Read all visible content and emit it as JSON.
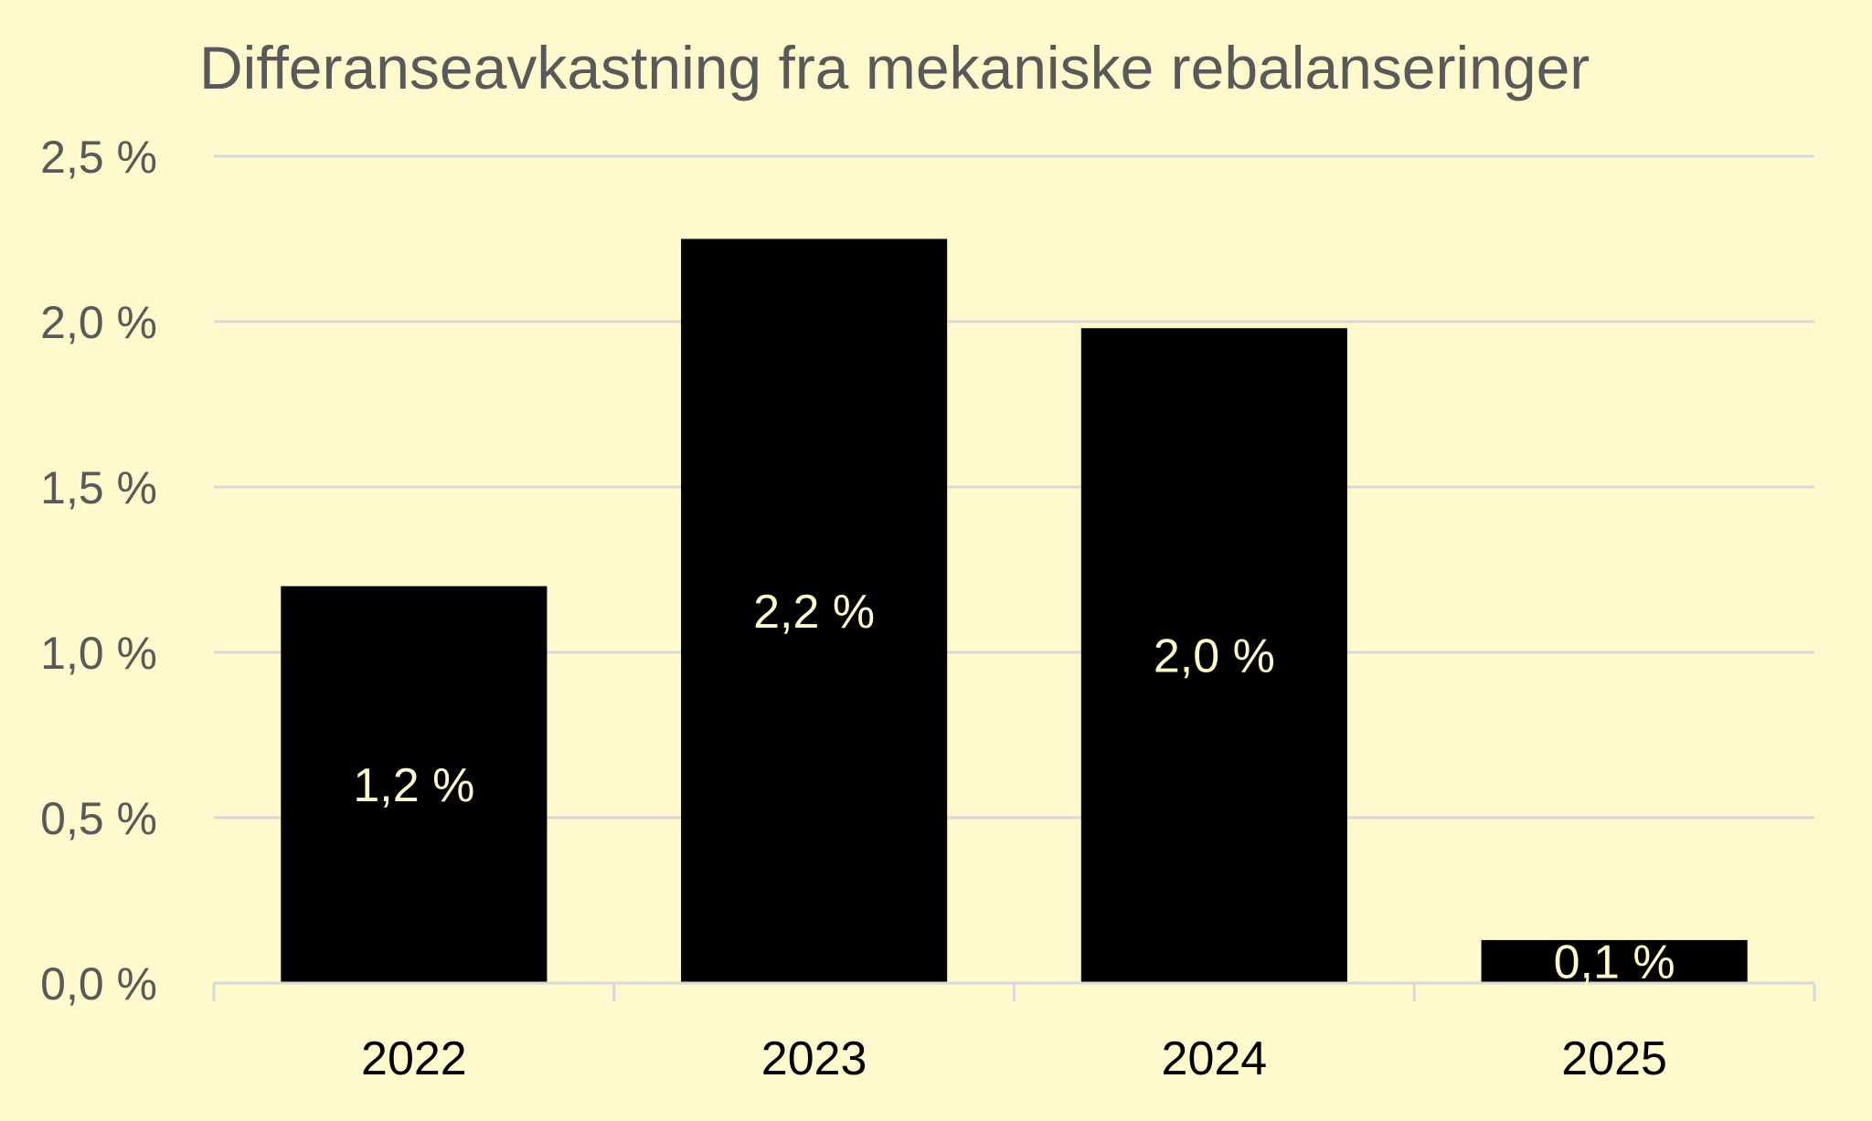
{
  "chart_data": {
    "type": "bar",
    "title": "Differanseavkastning fra mekaniske rebalanseringer",
    "xlabel": "",
    "ylabel": "",
    "categories": [
      "2022",
      "2023",
      "2024",
      "2025"
    ],
    "values": [
      1.2,
      2.25,
      1.98,
      0.13
    ],
    "data_labels": [
      "1,2 %",
      "2,2 %",
      "2,0 %",
      "0,1 %"
    ],
    "ylim": [
      0,
      2.5
    ],
    "yticks": [
      0,
      0.5,
      1.0,
      1.5,
      2.0,
      2.5
    ],
    "ytick_labels": [
      "0,0 %",
      "0,5 %",
      "1,0 %",
      "1,5 %",
      "2,0 %",
      "2,5 %"
    ],
    "grid": true,
    "legend": "none",
    "colors": {
      "background": "#fff9cd",
      "bar": "#000000",
      "data_label": "#fff9cd",
      "gridline": "#d9d9d9",
      "axis_text": "#595959",
      "category_text": "#000000"
    }
  }
}
